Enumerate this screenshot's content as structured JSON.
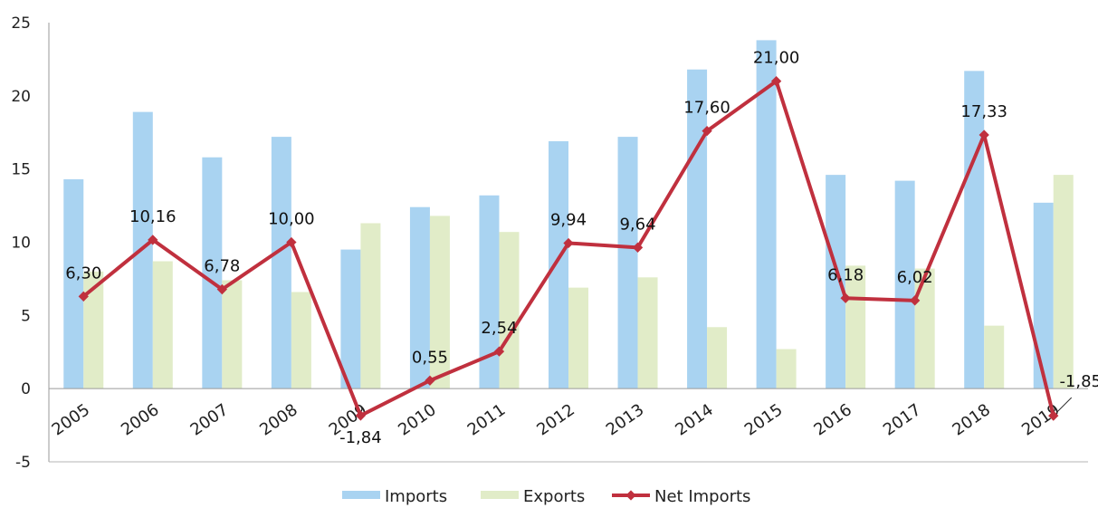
{
  "chart_data": {
    "type": "bar",
    "categories": [
      "2005",
      "2006",
      "2007",
      "2008",
      "2009",
      "2010",
      "2011",
      "2012",
      "2013",
      "2014",
      "2015",
      "2016",
      "2017",
      "2018",
      "2019"
    ],
    "series": [
      {
        "name": "Imports",
        "type": "bar",
        "color": "#a9d3f1",
        "values": [
          14.3,
          18.9,
          15.8,
          17.2,
          9.5,
          12.4,
          13.2,
          16.9,
          17.2,
          21.8,
          23.8,
          14.6,
          14.2,
          21.7,
          12.7
        ]
      },
      {
        "name": "Exports",
        "type": "bar",
        "color": "#e1ecc8",
        "values": [
          8.0,
          8.7,
          7.4,
          6.6,
          11.3,
          11.8,
          10.7,
          6.9,
          7.6,
          4.2,
          2.7,
          8.4,
          8.2,
          4.3,
          14.6
        ]
      },
      {
        "name": "Net Imports",
        "type": "line",
        "color": "#c0303e",
        "values": [
          6.3,
          10.16,
          6.78,
          10.0,
          -1.84,
          0.55,
          2.54,
          9.94,
          9.64,
          17.6,
          21.0,
          6.18,
          6.02,
          17.33,
          -1.85
        ],
        "labels": [
          "6,30",
          "10,16",
          "6,78",
          "10,00",
          "-1,84",
          "0,55",
          "2,54",
          "9,94",
          "9,64",
          "17,60",
          "21,00",
          "6,18",
          "6,02",
          "17,33",
          "-1,85"
        ]
      }
    ],
    "yticks": [
      "-5",
      "0",
      "5",
      "10",
      "15",
      "20",
      "25"
    ],
    "ylim": [
      -5,
      25
    ],
    "title": "",
    "xlabel": "",
    "ylabel": "",
    "grid": false,
    "legend": "bottom"
  }
}
